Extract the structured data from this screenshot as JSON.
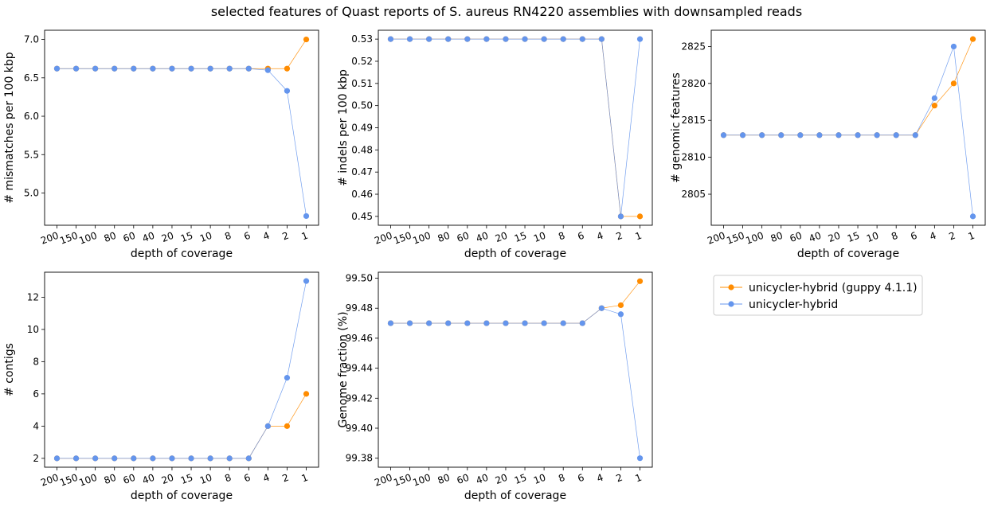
{
  "figure": {
    "title": "selected features of Quast reports of S. aureus RN4220 assemblies with downsampled reads",
    "legend": {
      "placement": "lower-right empty panel, top-left",
      "entries": [
        {
          "label": "unicycler-hybrid (guppy 4.1.1)",
          "color": "#ff8c00"
        },
        {
          "label": "unicycler-hybrid",
          "color": "#6495ed"
        }
      ]
    }
  },
  "chart_data": [
    {
      "type": "line",
      "xlabel": "depth of coverage",
      "ylabel": "# mismatches per 100 kbp",
      "categories": [
        "200",
        "150",
        "100",
        "80",
        "60",
        "40",
        "20",
        "15",
        "10",
        "8",
        "6",
        "4",
        "2",
        "1"
      ],
      "ylim": [
        4.58,
        7.12
      ],
      "yticks": [
        5.0,
        5.5,
        6.0,
        6.5,
        7.0
      ],
      "ytick_labels": [
        "5.0",
        "5.5",
        "6.0",
        "6.5",
        "7.0"
      ],
      "grid": false,
      "series": [
        {
          "name": "unicycler-hybrid (guppy 4.1.1)",
          "color": "#ff8c00",
          "values": [
            6.62,
            6.62,
            6.62,
            6.62,
            6.62,
            6.62,
            6.62,
            6.62,
            6.62,
            6.62,
            6.62,
            6.62,
            6.62,
            7.0
          ]
        },
        {
          "name": "unicycler-hybrid",
          "color": "#6495ed",
          "values": [
            6.62,
            6.62,
            6.62,
            6.62,
            6.62,
            6.62,
            6.62,
            6.62,
            6.62,
            6.62,
            6.62,
            6.6,
            6.33,
            4.7
          ]
        }
      ]
    },
    {
      "type": "line",
      "xlabel": "depth of coverage",
      "ylabel": "# indels per 100 kbp",
      "categories": [
        "200",
        "150",
        "100",
        "80",
        "60",
        "40",
        "20",
        "15",
        "10",
        "8",
        "6",
        "4",
        "2",
        "1"
      ],
      "ylim": [
        0.446,
        0.534
      ],
      "yticks": [
        0.45,
        0.46,
        0.47,
        0.48,
        0.49,
        0.5,
        0.51,
        0.52,
        0.53
      ],
      "ytick_labels": [
        "0.45",
        "0.46",
        "0.47",
        "0.48",
        "0.49",
        "0.50",
        "0.51",
        "0.52",
        "0.53"
      ],
      "grid": false,
      "series": [
        {
          "name": "unicycler-hybrid (guppy 4.1.1)",
          "color": "#ff8c00",
          "values": [
            0.53,
            0.53,
            0.53,
            0.53,
            0.53,
            0.53,
            0.53,
            0.53,
            0.53,
            0.53,
            0.53,
            0.53,
            0.45,
            0.45
          ]
        },
        {
          "name": "unicycler-hybrid",
          "color": "#6495ed",
          "values": [
            0.53,
            0.53,
            0.53,
            0.53,
            0.53,
            0.53,
            0.53,
            0.53,
            0.53,
            0.53,
            0.53,
            0.53,
            0.45,
            0.53
          ]
        }
      ]
    },
    {
      "type": "line",
      "xlabel": "depth of coverage",
      "ylabel": "# genomic features",
      "categories": [
        "200",
        "150",
        "100",
        "80",
        "60",
        "40",
        "20",
        "15",
        "10",
        "8",
        "6",
        "4",
        "2",
        "1"
      ],
      "ylim": [
        2800.8,
        2827.2
      ],
      "yticks": [
        2805,
        2810,
        2815,
        2820,
        2825
      ],
      "ytick_labels": [
        "2805",
        "2810",
        "2815",
        "2820",
        "2825"
      ],
      "grid": false,
      "series": [
        {
          "name": "unicycler-hybrid (guppy 4.1.1)",
          "color": "#ff8c00",
          "values": [
            2813,
            2813,
            2813,
            2813,
            2813,
            2813,
            2813,
            2813,
            2813,
            2813,
            2813,
            2817,
            2820,
            2826
          ]
        },
        {
          "name": "unicycler-hybrid",
          "color": "#6495ed",
          "values": [
            2813,
            2813,
            2813,
            2813,
            2813,
            2813,
            2813,
            2813,
            2813,
            2813,
            2813,
            2818,
            2825,
            2802
          ]
        }
      ]
    },
    {
      "type": "line",
      "xlabel": "depth of coverage",
      "ylabel": "# contigs",
      "categories": [
        "200",
        "150",
        "100",
        "80",
        "60",
        "40",
        "20",
        "15",
        "10",
        "8",
        "6",
        "4",
        "2",
        "1"
      ],
      "ylim": [
        1.45,
        13.55
      ],
      "yticks": [
        2,
        4,
        6,
        8,
        10,
        12
      ],
      "ytick_labels": [
        "2",
        "4",
        "6",
        "8",
        "10",
        "12"
      ],
      "grid": false,
      "series": [
        {
          "name": "unicycler-hybrid (guppy 4.1.1)",
          "color": "#ff8c00",
          "values": [
            2,
            2,
            2,
            2,
            2,
            2,
            2,
            2,
            2,
            2,
            2,
            4,
            4,
            6
          ]
        },
        {
          "name": "unicycler-hybrid",
          "color": "#6495ed",
          "values": [
            2,
            2,
            2,
            2,
            2,
            2,
            2,
            2,
            2,
            2,
            2,
            4,
            7,
            13
          ]
        }
      ]
    },
    {
      "type": "line",
      "xlabel": "depth of coverage",
      "ylabel": "Genome fraction (%)",
      "categories": [
        "200",
        "150",
        "100",
        "80",
        "60",
        "40",
        "20",
        "15",
        "10",
        "8",
        "6",
        "4",
        "2",
        "1"
      ],
      "ylim": [
        99.374,
        99.504
      ],
      "yticks": [
        99.38,
        99.4,
        99.42,
        99.44,
        99.46,
        99.48,
        99.5
      ],
      "ytick_labels": [
        "99.38",
        "99.40",
        "99.42",
        "99.44",
        "99.46",
        "99.48",
        "99.50"
      ],
      "grid": false,
      "series": [
        {
          "name": "unicycler-hybrid (guppy 4.1.1)",
          "color": "#ff8c00",
          "values": [
            99.47,
            99.47,
            99.47,
            99.47,
            99.47,
            99.47,
            99.47,
            99.47,
            99.47,
            99.47,
            99.47,
            99.48,
            99.482,
            99.498
          ]
        },
        {
          "name": "unicycler-hybrid",
          "color": "#6495ed",
          "values": [
            99.47,
            99.47,
            99.47,
            99.47,
            99.47,
            99.47,
            99.47,
            99.47,
            99.47,
            99.47,
            99.47,
            99.48,
            99.476,
            99.38
          ]
        }
      ]
    }
  ]
}
